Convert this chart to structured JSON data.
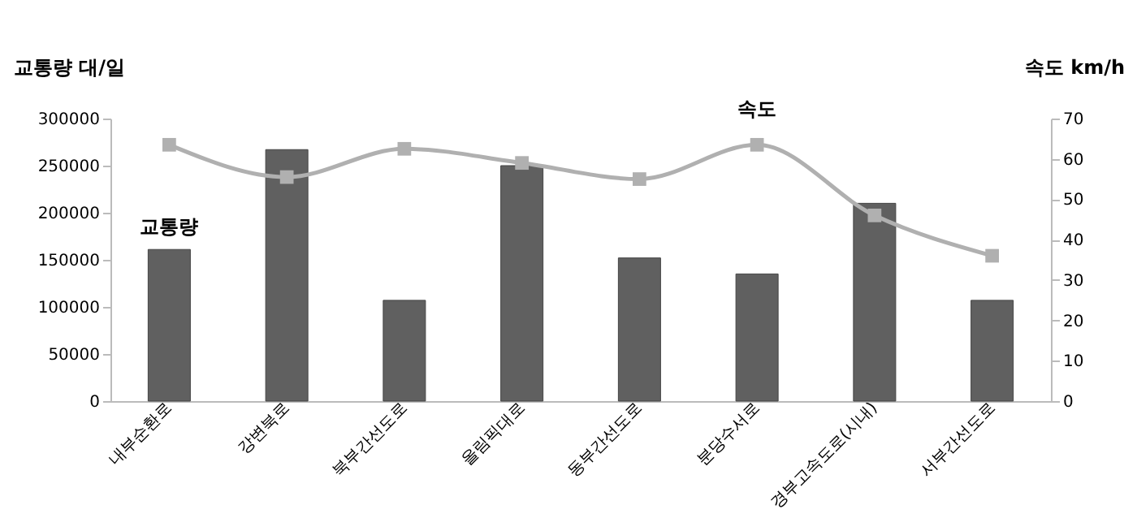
{
  "chart_data": {
    "type": "bar",
    "categories": [
      "내부순환로",
      "강변북로",
      "북부간선도로",
      "올림픽대로",
      "동부간선도로",
      "분당수서로",
      "경부고속도로(시내)",
      "서부간선도로"
    ],
    "series": [
      {
        "name": "교통량",
        "color": "#606060",
        "values": [
          161000,
          267000,
          107000,
          250000,
          152000,
          135000,
          210000,
          107000
        ]
      },
      {
        "name": "속도",
        "type": "line",
        "axis": "y2",
        "color": "#b0b0b0",
        "marker": "square",
        "values": [
          63.5,
          55.5,
          62.5,
          59,
          55,
          63.5,
          46,
          36
        ]
      }
    ],
    "ylabel": "교통량 대/일",
    "y2label": "속도 km/h",
    "ylim": [
      0,
      300000
    ],
    "yticks": [
      0,
      50000,
      100000,
      150000,
      200000,
      250000,
      300000
    ],
    "y2lim": [
      0,
      70
    ],
    "y2ticks": [
      0,
      10,
      20,
      30,
      40,
      50,
      60,
      70
    ],
    "grid": false,
    "legend": false
  }
}
